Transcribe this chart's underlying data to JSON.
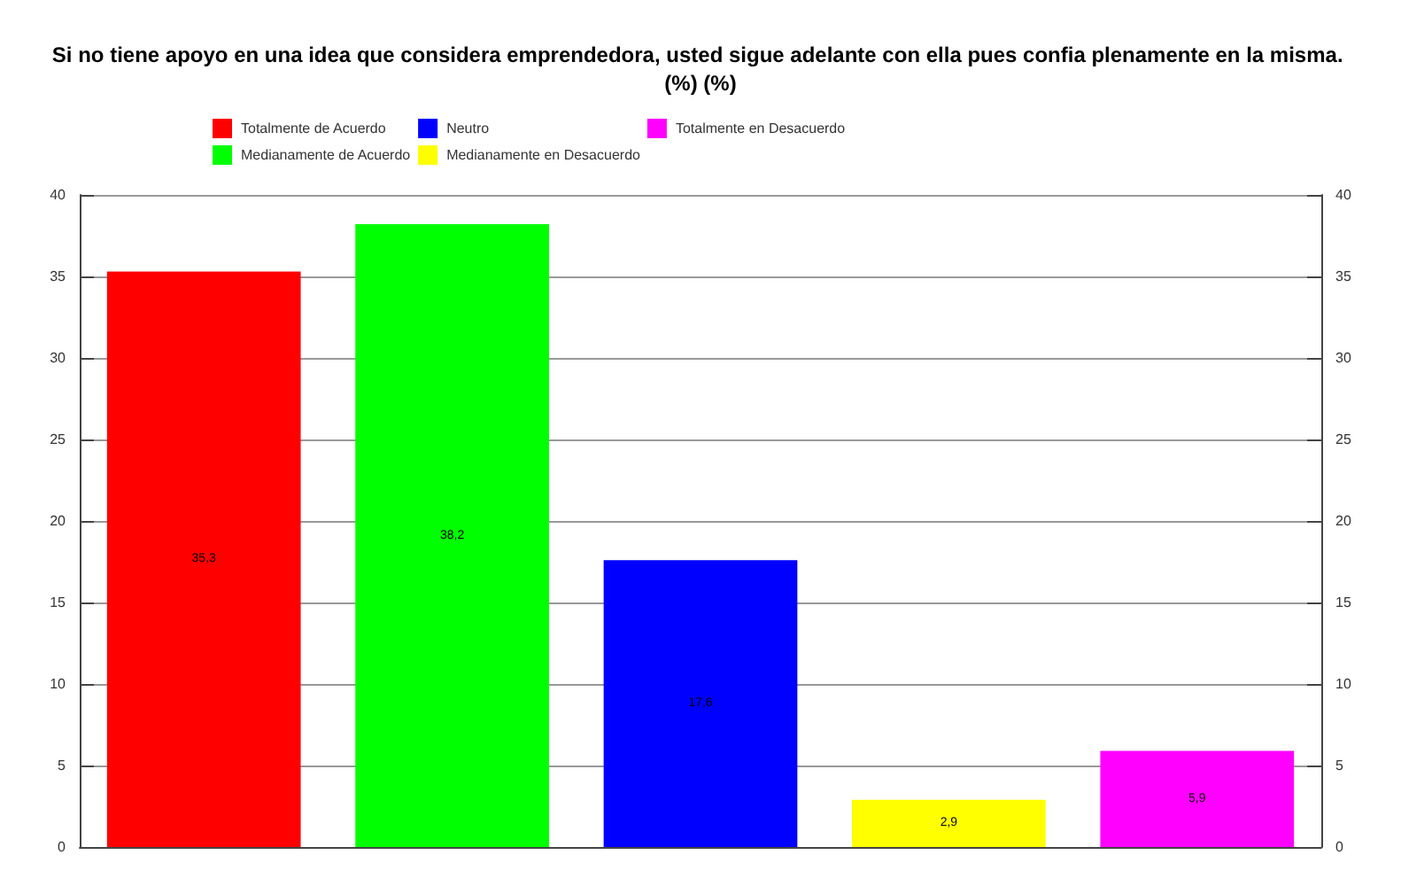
{
  "chart_data": {
    "type": "bar",
    "title": "Si no tiene apoyo en una idea que considera emprendedora, usted sigue adelante con ella pues confia plenamente en la misma. (%) (%)",
    "categories": [
      null,
      null,
      null,
      null,
      null
    ],
    "series": [
      {
        "name": "Totalmente de Acuerdo",
        "color": "#ff0000",
        "values": [
          35.3,
          null,
          null,
          null,
          null
        ],
        "value_labels": [
          "35,3",
          null,
          null,
          null,
          null
        ]
      },
      {
        "name": "Medianamente de Acuerdo",
        "color": "#00ff00",
        "values": [
          null,
          38.2,
          null,
          null,
          null
        ],
        "value_labels": [
          null,
          "38,2",
          null,
          null,
          null
        ]
      },
      {
        "name": "Neutro",
        "color": "#0000ff",
        "values": [
          null,
          null,
          17.6,
          null,
          null
        ],
        "value_labels": [
          null,
          null,
          "17,6",
          null,
          null
        ]
      },
      {
        "name": "Medianamente en Desacuerdo",
        "color": "#ffff00",
        "values": [
          null,
          null,
          null,
          2.9,
          null
        ],
        "value_labels": [
          null,
          null,
          null,
          "2,9",
          null
        ]
      },
      {
        "name": "Totalmente en Desacuerdo",
        "color": "#ff00ff",
        "values": [
          null,
          null,
          null,
          null,
          5.9
        ],
        "value_labels": [
          null,
          null,
          null,
          null,
          "5,9"
        ]
      }
    ],
    "ylim": [
      0,
      40
    ],
    "yticks": [
      0,
      5,
      10,
      15,
      20,
      25,
      30,
      35,
      40
    ],
    "y2lim": [
      0,
      40
    ],
    "y2ticks": [
      0,
      5,
      10,
      15,
      20,
      25,
      30,
      35,
      40
    ],
    "grid": "y",
    "legend": "top"
  }
}
